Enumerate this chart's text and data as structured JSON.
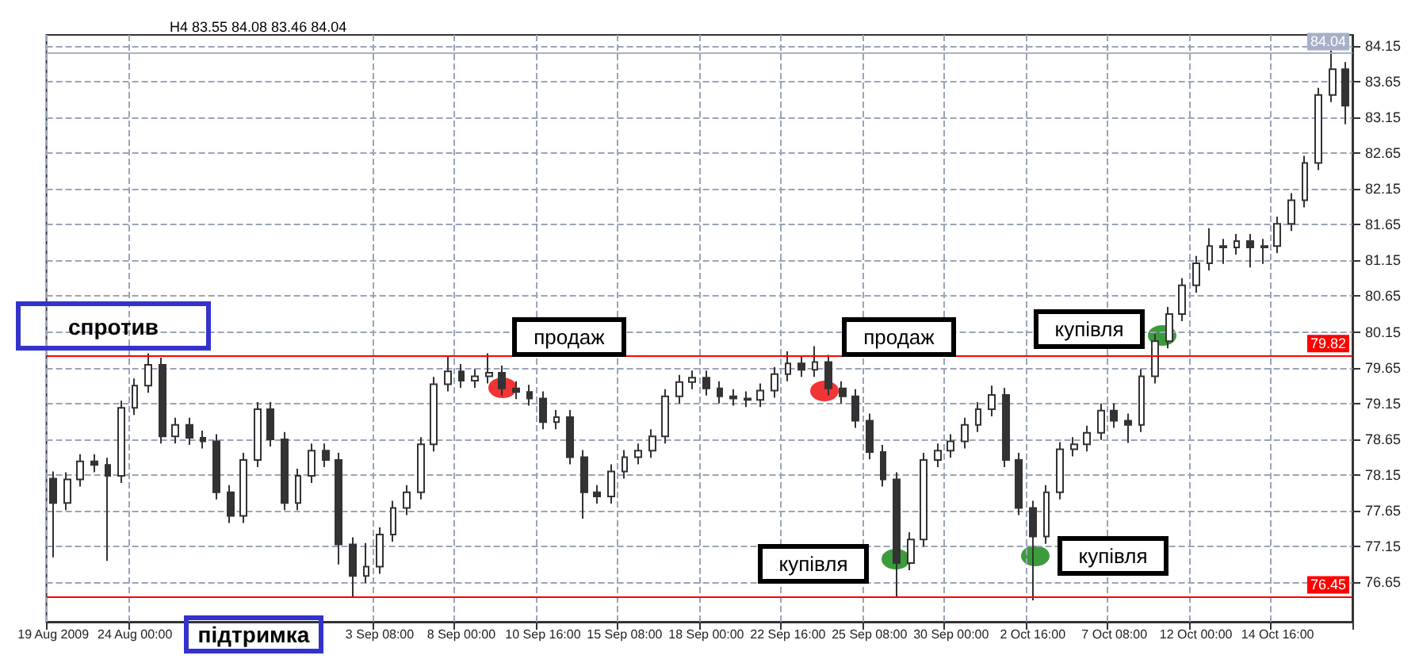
{
  "chart_data": {
    "type": "candlestick",
    "categories": [
      "19 Aug 2009",
      null,
      null,
      null,
      null,
      null,
      "24 Aug 00:00",
      null,
      null,
      null,
      null,
      null,
      null,
      null,
      null,
      null,
      null,
      null,
      null,
      null,
      null,
      null,
      null,
      null,
      "3 Sep 08:00",
      null,
      null,
      null,
      null,
      null,
      "8 Sep 00:00",
      null,
      null,
      null,
      null,
      null,
      "10 Sep 16:00",
      null,
      null,
      null,
      null,
      null,
      "15 Sep 08:00",
      null,
      null,
      null,
      null,
      null,
      "18 Sep 00:00",
      null,
      null,
      null,
      null,
      null,
      "22 Sep 16:00",
      null,
      null,
      null,
      null,
      null,
      "25 Sep 08:00",
      null,
      null,
      null,
      null,
      null,
      "30 Sep 00:00",
      null,
      null,
      null,
      null,
      null,
      "2 Oct 16:00",
      null,
      null,
      null,
      null,
      null,
      "7 Oct 08:00",
      null,
      null,
      null,
      null,
      null,
      "12 Oct 00:00",
      null,
      null,
      null,
      null,
      null,
      "14 Oct 16:00",
      null,
      null,
      null,
      null,
      null
    ],
    "series": [
      {
        "color": "#333333",
        "ohlc": [
          [
            78.1,
            78.2,
            77.0,
            77.76
          ],
          [
            77.76,
            78.19,
            77.66,
            78.09
          ],
          [
            78.09,
            78.44,
            77.99,
            78.34
          ],
          [
            78.34,
            78.44,
            78.19,
            78.29
          ],
          [
            78.29,
            78.39,
            76.95,
            78.14
          ],
          [
            78.14,
            79.19,
            78.04,
            79.09
          ],
          [
            79.09,
            79.5,
            78.99,
            79.4
          ],
          [
            79.4,
            79.85,
            79.3,
            79.69
          ],
          [
            79.69,
            79.79,
            78.59,
            78.69
          ],
          [
            78.69,
            78.95,
            78.59,
            78.85
          ],
          [
            78.85,
            78.95,
            78.57,
            78.67
          ],
          [
            78.67,
            78.77,
            78.52,
            78.62
          ],
          [
            78.62,
            78.72,
            77.81,
            77.91
          ],
          [
            77.91,
            78.01,
            77.48,
            77.58
          ],
          [
            77.58,
            78.46,
            77.48,
            78.36
          ],
          [
            78.36,
            79.17,
            78.26,
            79.07
          ],
          [
            79.07,
            79.17,
            78.55,
            78.65
          ],
          [
            78.65,
            78.75,
            77.66,
            77.76
          ],
          [
            77.76,
            78.24,
            77.66,
            78.14
          ],
          [
            78.14,
            78.59,
            78.04,
            78.49
          ],
          [
            78.49,
            78.59,
            78.26,
            78.36
          ],
          [
            78.36,
            78.46,
            76.9,
            77.18
          ],
          [
            77.18,
            77.28,
            76.45,
            76.74
          ],
          [
            76.74,
            77.2,
            76.64,
            76.87
          ],
          [
            76.87,
            77.42,
            76.77,
            77.32
          ],
          [
            77.32,
            77.79,
            77.22,
            77.69
          ],
          [
            77.69,
            78.01,
            77.59,
            77.91
          ],
          [
            77.91,
            78.68,
            77.81,
            78.58
          ],
          [
            78.58,
            79.52,
            78.48,
            79.42
          ],
          [
            79.42,
            79.8,
            79.32,
            79.6
          ],
          [
            79.6,
            79.7,
            79.37,
            79.47
          ],
          [
            79.47,
            79.63,
            79.37,
            79.53
          ],
          [
            79.53,
            79.85,
            79.43,
            79.58
          ],
          [
            79.58,
            79.68,
            79.26,
            79.36
          ],
          [
            79.36,
            79.46,
            79.21,
            79.31
          ],
          [
            79.31,
            79.41,
            79.12,
            79.22
          ],
          [
            79.22,
            79.32,
            78.79,
            78.89
          ],
          [
            78.89,
            79.06,
            78.79,
            78.96
          ],
          [
            78.96,
            79.06,
            78.3,
            78.4
          ],
          [
            78.4,
            78.5,
            77.54,
            77.91
          ],
          [
            77.91,
            78.01,
            77.75,
            77.85
          ],
          [
            77.85,
            78.3,
            77.75,
            78.2
          ],
          [
            78.2,
            78.5,
            78.1,
            78.4
          ],
          [
            78.4,
            78.59,
            78.3,
            78.49
          ],
          [
            78.49,
            78.79,
            78.39,
            78.69
          ],
          [
            78.69,
            79.35,
            78.59,
            79.25
          ],
          [
            79.25,
            79.55,
            79.15,
            79.45
          ],
          [
            79.45,
            79.61,
            79.35,
            79.51
          ],
          [
            79.51,
            79.61,
            79.26,
            79.36
          ],
          [
            79.36,
            79.46,
            79.15,
            79.25
          ],
          [
            79.25,
            79.35,
            79.12,
            79.22
          ],
          [
            79.22,
            79.32,
            79.1,
            79.2
          ],
          [
            79.2,
            79.43,
            79.1,
            79.33
          ],
          [
            79.33,
            79.66,
            79.23,
            79.56
          ],
          [
            79.56,
            79.88,
            79.46,
            79.71
          ],
          [
            79.71,
            79.81,
            79.52,
            79.62
          ],
          [
            79.62,
            79.95,
            79.52,
            79.73
          ],
          [
            79.73,
            79.83,
            79.26,
            79.36
          ],
          [
            79.36,
            79.46,
            79.15,
            79.25
          ],
          [
            79.25,
            79.35,
            78.81,
            78.91
          ],
          [
            78.91,
            79.01,
            78.37,
            78.47
          ],
          [
            78.47,
            78.57,
            77.99,
            78.09
          ],
          [
            78.09,
            78.19,
            76.45,
            76.92
          ],
          [
            76.92,
            77.35,
            76.82,
            77.25
          ],
          [
            77.25,
            78.46,
            77.15,
            78.36
          ],
          [
            78.36,
            78.59,
            78.26,
            78.49
          ],
          [
            78.49,
            78.72,
            78.39,
            78.62
          ],
          [
            78.62,
            78.95,
            78.52,
            78.85
          ],
          [
            78.85,
            79.17,
            78.75,
            79.07
          ],
          [
            79.07,
            79.4,
            78.97,
            79.27
          ],
          [
            79.27,
            79.37,
            78.26,
            78.36
          ],
          [
            78.36,
            78.46,
            77.59,
            77.69
          ],
          [
            77.69,
            77.79,
            76.4,
            77.29
          ],
          [
            77.29,
            78.01,
            77.19,
            77.91
          ],
          [
            77.91,
            78.61,
            77.81,
            78.51
          ],
          [
            78.51,
            78.68,
            78.41,
            78.58
          ],
          [
            78.58,
            78.84,
            78.48,
            78.74
          ],
          [
            78.74,
            79.15,
            78.64,
            79.05
          ],
          [
            79.05,
            79.15,
            78.81,
            78.91
          ],
          [
            78.91,
            79.01,
            78.6,
            78.85
          ],
          [
            78.85,
            79.63,
            78.75,
            79.53
          ],
          [
            79.53,
            80.12,
            79.43,
            80.02
          ],
          [
            80.02,
            80.5,
            79.92,
            80.4
          ],
          [
            80.4,
            80.9,
            80.3,
            80.8
          ],
          [
            80.8,
            81.21,
            80.7,
            81.11
          ],
          [
            81.11,
            81.6,
            81.01,
            81.35
          ],
          [
            81.35,
            81.45,
            81.1,
            81.33
          ],
          [
            81.33,
            81.52,
            81.23,
            81.42
          ],
          [
            81.42,
            81.52,
            81.05,
            81.33
          ],
          [
            81.33,
            81.45,
            81.1,
            81.35
          ],
          [
            81.35,
            81.76,
            81.25,
            81.66
          ],
          [
            81.66,
            82.09,
            81.56,
            81.99
          ],
          [
            81.99,
            82.61,
            81.89,
            82.51
          ],
          [
            82.51,
            83.56,
            82.41,
            83.46
          ],
          [
            83.46,
            84.08,
            83.36,
            83.82
          ],
          [
            83.82,
            83.92,
            83.05,
            83.31
          ]
        ]
      }
    ],
    "ylim": [
      76.1,
      84.3
    ],
    "yticks": [
      76.65,
      77.15,
      77.65,
      78.15,
      78.65,
      79.15,
      79.65,
      80.15,
      80.65,
      81.15,
      81.65,
      82.15,
      82.65,
      83.15,
      83.65,
      84.15
    ],
    "ref_lines": [
      {
        "axis": "y",
        "value": 79.82,
        "label": "79.82",
        "color": "#ff0000"
      },
      {
        "axis": "y",
        "value": 76.45,
        "label": "76.45",
        "color": "#ff0000"
      },
      {
        "axis": "y",
        "value": 84.04,
        "label": "84.04",
        "color": "#a8b0c8"
      }
    ],
    "annotations": [
      "H4 83.55 84.08 83.46 84.04",
      "спротив",
      "підтримка",
      "продаж",
      "продаж",
      "купівля",
      "купівля",
      "купівля"
    ],
    "grid": true
  }
}
